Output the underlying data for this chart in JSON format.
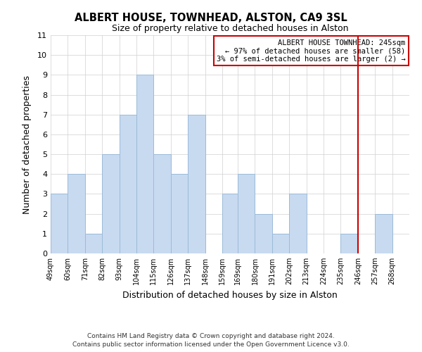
{
  "title": "ALBERT HOUSE, TOWNHEAD, ALSTON, CA9 3SL",
  "subtitle": "Size of property relative to detached houses in Alston",
  "xlabel": "Distribution of detached houses by size in Alston",
  "ylabel": "Number of detached properties",
  "footer_line1": "Contains HM Land Registry data © Crown copyright and database right 2024.",
  "footer_line2": "Contains public sector information licensed under the Open Government Licence v3.0.",
  "bin_labels": [
    "49sqm",
    "60sqm",
    "71sqm",
    "82sqm",
    "93sqm",
    "104sqm",
    "115sqm",
    "126sqm",
    "137sqm",
    "148sqm",
    "159sqm",
    "169sqm",
    "180sqm",
    "191sqm",
    "202sqm",
    "213sqm",
    "224sqm",
    "235sqm",
    "246sqm",
    "257sqm",
    "268sqm"
  ],
  "bar_values": [
    3,
    4,
    1,
    5,
    7,
    9,
    5,
    4,
    7,
    0,
    3,
    4,
    2,
    1,
    3,
    0,
    0,
    1,
    0,
    2,
    0
  ],
  "bar_color": "#c8daf0",
  "bar_edge_color": "#9bbbd8",
  "grid_color": "#d0d0d0",
  "reference_line_color": "#cc0000",
  "ylim": [
    0,
    11
  ],
  "yticks": [
    0,
    1,
    2,
    3,
    4,
    5,
    6,
    7,
    8,
    9,
    10,
    11
  ],
  "legend_title": "ALBERT HOUSE TOWNHEAD: 245sqm",
  "legend_line1": "← 97% of detached houses are smaller (58)",
  "legend_line2": "3% of semi-detached houses are larger (2) →",
  "legend_box_color": "#ffffff",
  "legend_box_edge_color": "#cc0000"
}
